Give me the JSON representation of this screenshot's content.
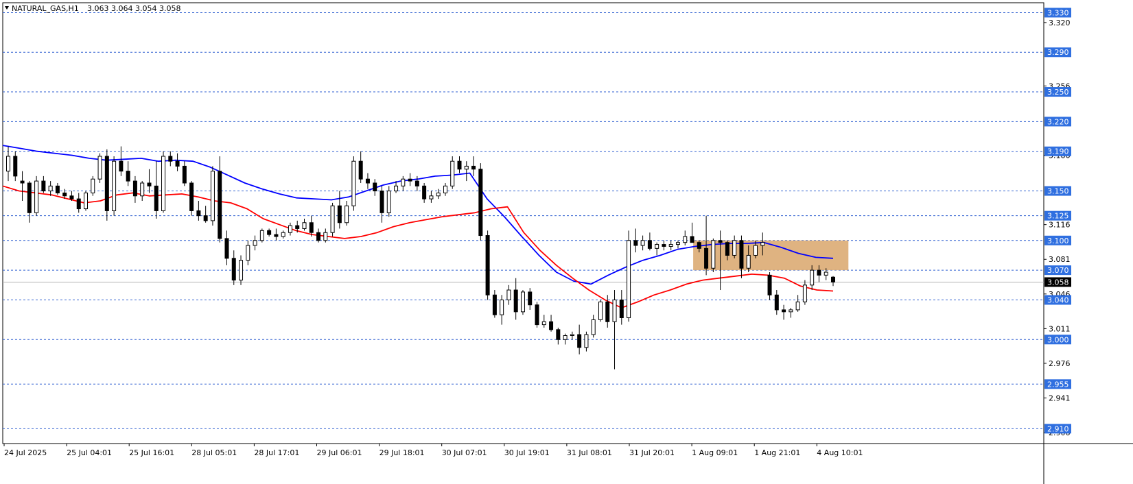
{
  "header": {
    "symbol": "NATURAL_GAS,H1",
    "ohlc": "3.063 3.064 3.054 3.058"
  },
  "colors": {
    "level_line": "#2f5fd0",
    "level_tag": "#2f6fe0",
    "ma_fast": "#ff0000",
    "ma_slow": "#0000ff",
    "supply_zone": "#d9a66b",
    "candle_bull": "#ffffff",
    "candle_bear": "#000000",
    "current_price_tag": "#000000"
  },
  "chart_data": {
    "type": "candlestick",
    "symbol": "NATURAL_GAS",
    "timeframe": "H1",
    "y_range": [
      2.895,
      3.34
    ],
    "y_ticks": [
      "3.320",
      "3.256",
      "3.186",
      "3.116",
      "3.081",
      "3.046",
      "3.011",
      "2.976",
      "2.941",
      "2.906"
    ],
    "x_ticks": [
      "24 Jul 2025",
      "25 Jul 04:01",
      "25 Jul 16:01",
      "28 Jul 05:01",
      "28 Jul 17:01",
      "29 Jul 06:01",
      "29 Jul 18:01",
      "30 Jul 07:01",
      "30 Jul 19:01",
      "31 Jul 08:01",
      "31 Jul 20:01",
      "1 Aug 09:01",
      "1 Aug 21:01",
      "4 Aug 10:01"
    ],
    "levels": [
      "3.330",
      "3.290",
      "3.250",
      "3.220",
      "3.190",
      "3.150",
      "3.125",
      "3.100",
      "3.070",
      "3.040",
      "3.000",
      "2.955",
      "2.910"
    ],
    "current_price": "3.058",
    "supply_zone": {
      "from_time": "1 Aug 09:01",
      "to_time": "4 Aug 10:01",
      "low": 3.07,
      "high": 3.1
    },
    "ma_fast_values": [
      3.155,
      3.15,
      3.148,
      3.146,
      3.142,
      3.138,
      3.14,
      3.146,
      3.148,
      3.145,
      3.146,
      3.147,
      3.144,
      3.14,
      3.138,
      3.132,
      3.122,
      3.116,
      3.11,
      3.106,
      3.104,
      3.102,
      3.104,
      3.108,
      3.114,
      3.118,
      3.121,
      3.124,
      3.126,
      3.128,
      3.132,
      3.134,
      3.108,
      3.09,
      3.075,
      3.062,
      3.05,
      3.04,
      3.032,
      3.038,
      3.045,
      3.05,
      3.056,
      3.06,
      3.062,
      3.064,
      3.066,
      3.065,
      3.062,
      3.054,
      3.05,
      3.049
    ],
    "ma_slow_values": [
      3.196,
      3.193,
      3.19,
      3.188,
      3.186,
      3.183,
      3.181,
      3.182,
      3.183,
      3.18,
      3.181,
      3.18,
      3.174,
      3.166,
      3.158,
      3.152,
      3.147,
      3.143,
      3.142,
      3.141,
      3.144,
      3.15,
      3.156,
      3.16,
      3.162,
      3.165,
      3.166,
      3.168,
      3.142,
      3.124,
      3.104,
      3.085,
      3.068,
      3.059,
      3.056,
      3.065,
      3.073,
      3.08,
      3.085,
      3.091,
      3.094,
      3.096,
      3.097,
      3.097,
      3.098,
      3.093,
      3.087,
      3.083,
      3.082
    ],
    "candles": [
      [
        3.17,
        3.195,
        3.16,
        3.185
      ],
      [
        3.185,
        3.19,
        3.16,
        3.165
      ],
      [
        3.16,
        3.17,
        3.14,
        3.158
      ],
      [
        3.158,
        3.16,
        3.118,
        3.128
      ],
      [
        3.128,
        3.165,
        3.125,
        3.16
      ],
      [
        3.16,
        3.165,
        3.148,
        3.15
      ],
      [
        3.15,
        3.16,
        3.145,
        3.155
      ],
      [
        3.155,
        3.158,
        3.146,
        3.148
      ],
      [
        3.148,
        3.152,
        3.142,
        3.145
      ],
      [
        3.145,
        3.15,
        3.14,
        3.142
      ],
      [
        3.142,
        3.148,
        3.128,
        3.132
      ],
      [
        3.132,
        3.15,
        3.13,
        3.148
      ],
      [
        3.148,
        3.165,
        3.145,
        3.162
      ],
      [
        3.162,
        3.188,
        3.158,
        3.185
      ],
      [
        3.185,
        3.192,
        3.12,
        3.13
      ],
      [
        3.13,
        3.185,
        3.125,
        3.18
      ],
      [
        3.18,
        3.195,
        3.165,
        3.17
      ],
      [
        3.17,
        3.18,
        3.155,
        3.16
      ],
      [
        3.16,
        3.165,
        3.138,
        3.145
      ],
      [
        3.145,
        3.16,
        3.14,
        3.158
      ],
      [
        3.158,
        3.172,
        3.148,
        3.155
      ],
      [
        3.155,
        3.18,
        3.122,
        3.13
      ],
      [
        3.13,
        3.19,
        3.128,
        3.185
      ],
      [
        3.185,
        3.19,
        3.175,
        3.18
      ],
      [
        3.18,
        3.188,
        3.17,
        3.175
      ],
      [
        3.175,
        3.18,
        3.155,
        3.158
      ],
      [
        3.158,
        3.16,
        3.125,
        3.13
      ],
      [
        3.13,
        3.14,
        3.12,
        3.125
      ],
      [
        3.125,
        3.135,
        3.118,
        3.12
      ],
      [
        3.12,
        3.175,
        3.115,
        3.17
      ],
      [
        3.17,
        3.185,
        3.098,
        3.102
      ],
      [
        3.102,
        3.11,
        3.075,
        3.082
      ],
      [
        3.082,
        3.09,
        3.055,
        3.06
      ],
      [
        3.06,
        3.085,
        3.055,
        3.08
      ],
      [
        3.08,
        3.1,
        3.075,
        3.095
      ],
      [
        3.095,
        3.105,
        3.09,
        3.1
      ],
      [
        3.1,
        3.112,
        3.098,
        3.11
      ],
      [
        3.11,
        3.112,
        3.104,
        3.106
      ],
      [
        3.106,
        3.112,
        3.1,
        3.104
      ],
      [
        3.104,
        3.11,
        3.102,
        3.108
      ],
      [
        3.108,
        3.118,
        3.105,
        3.115
      ],
      [
        3.115,
        3.12,
        3.108,
        3.112
      ],
      [
        3.112,
        3.122,
        3.11,
        3.118
      ],
      [
        3.118,
        3.125,
        3.104,
        3.108
      ],
      [
        3.108,
        3.112,
        3.098,
        3.1
      ],
      [
        3.1,
        3.112,
        3.098,
        3.108
      ],
      [
        3.108,
        3.138,
        3.104,
        3.135
      ],
      [
        3.135,
        3.15,
        3.112,
        3.118
      ],
      [
        3.118,
        3.14,
        3.115,
        3.135
      ],
      [
        3.135,
        3.185,
        3.13,
        3.18
      ],
      [
        3.18,
        3.19,
        3.158,
        3.162
      ],
      [
        3.162,
        3.168,
        3.152,
        3.158
      ],
      [
        3.158,
        3.162,
        3.145,
        3.15
      ],
      [
        3.15,
        3.155,
        3.118,
        3.128
      ],
      [
        3.128,
        3.155,
        3.124,
        3.15
      ],
      [
        3.15,
        3.16,
        3.148,
        3.155
      ],
      [
        3.155,
        3.165,
        3.15,
        3.162
      ],
      [
        3.162,
        3.168,
        3.155,
        3.16
      ],
      [
        3.16,
        3.165,
        3.15,
        3.155
      ],
      [
        3.155,
        3.158,
        3.138,
        3.142
      ],
      [
        3.142,
        3.15,
        3.138,
        3.145
      ],
      [
        3.145,
        3.152,
        3.142,
        3.148
      ],
      [
        3.148,
        3.158,
        3.145,
        3.155
      ],
      [
        3.155,
        3.185,
        3.152,
        3.18
      ],
      [
        3.18,
        3.185,
        3.168,
        3.172
      ],
      [
        3.172,
        3.18,
        3.16,
        3.175
      ],
      [
        3.175,
        3.185,
        3.165,
        3.172
      ],
      [
        3.172,
        3.178,
        3.1,
        3.105
      ],
      [
        3.105,
        3.11,
        3.04,
        3.045
      ],
      [
        3.045,
        3.05,
        3.022,
        3.025
      ],
      [
        3.025,
        3.045,
        3.015,
        3.04
      ],
      [
        3.04,
        3.055,
        3.035,
        3.05
      ],
      [
        3.05,
        3.062,
        3.02,
        3.028
      ],
      [
        3.028,
        3.05,
        3.025,
        3.048
      ],
      [
        3.048,
        3.052,
        3.03,
        3.035
      ],
      [
        3.035,
        3.038,
        3.012,
        3.015
      ],
      [
        3.015,
        3.025,
        3.012,
        3.018
      ],
      [
        3.018,
        3.025,
        3.008,
        3.01
      ],
      [
        3.01,
        3.012,
        2.995,
        3.0
      ],
      [
        3.0,
        3.006,
        2.995,
        3.004
      ],
      [
        3.004,
        3.008,
        3.0,
        3.005
      ],
      [
        3.005,
        3.015,
        2.985,
        2.992
      ],
      [
        2.992,
        3.008,
        2.988,
        3.005
      ],
      [
        3.005,
        3.025,
        3.002,
        3.02
      ],
      [
        3.02,
        3.04,
        3.018,
        3.038
      ],
      [
        3.038,
        3.045,
        3.012,
        3.018
      ],
      [
        3.018,
        3.05,
        2.97,
        3.04
      ],
      [
        3.04,
        3.05,
        3.015,
        3.022
      ],
      [
        3.022,
        3.11,
        3.018,
        3.1
      ],
      [
        3.1,
        3.112,
        3.088,
        3.095
      ],
      [
        3.095,
        3.105,
        3.09,
        3.1
      ],
      [
        3.1,
        3.108,
        3.09,
        3.092
      ],
      [
        3.092,
        3.098,
        3.085,
        3.096
      ],
      [
        3.096,
        3.1,
        3.09,
        3.094
      ],
      [
        3.094,
        3.1,
        3.09,
        3.096
      ],
      [
        3.096,
        3.1,
        3.092,
        3.098
      ],
      [
        3.098,
        3.11,
        3.095,
        3.104
      ],
      [
        3.104,
        3.118,
        3.1,
        3.098
      ],
      [
        3.098,
        3.1,
        3.088,
        3.092
      ],
      [
        3.092,
        3.125,
        3.065,
        3.072
      ],
      [
        3.072,
        3.102,
        3.068,
        3.1
      ],
      [
        3.1,
        3.11,
        3.05,
        3.098
      ],
      [
        3.098,
        3.1,
        3.08,
        3.085
      ],
      [
        3.085,
        3.105,
        3.082,
        3.1
      ],
      [
        3.1,
        3.105,
        3.062,
        3.072
      ],
      [
        3.072,
        3.095,
        3.068,
        3.085
      ],
      [
        3.085,
        3.1,
        3.082,
        3.095
      ],
      [
        3.095,
        3.108,
        3.085,
        3.098
      ],
      [
        3.065,
        3.068,
        3.04,
        3.045
      ],
      [
        3.045,
        3.05,
        3.025,
        3.03
      ],
      [
        3.03,
        3.035,
        3.02,
        3.028
      ],
      [
        3.028,
        3.032,
        3.022,
        3.03
      ],
      [
        3.03,
        3.045,
        3.028,
        3.038
      ],
      [
        3.038,
        3.06,
        3.035,
        3.055
      ],
      [
        3.055,
        3.075,
        3.05,
        3.07
      ],
      [
        3.07,
        3.075,
        3.058,
        3.065
      ],
      [
        3.065,
        3.072,
        3.06,
        3.068
      ],
      [
        3.063,
        3.064,
        3.054,
        3.058
      ]
    ]
  }
}
